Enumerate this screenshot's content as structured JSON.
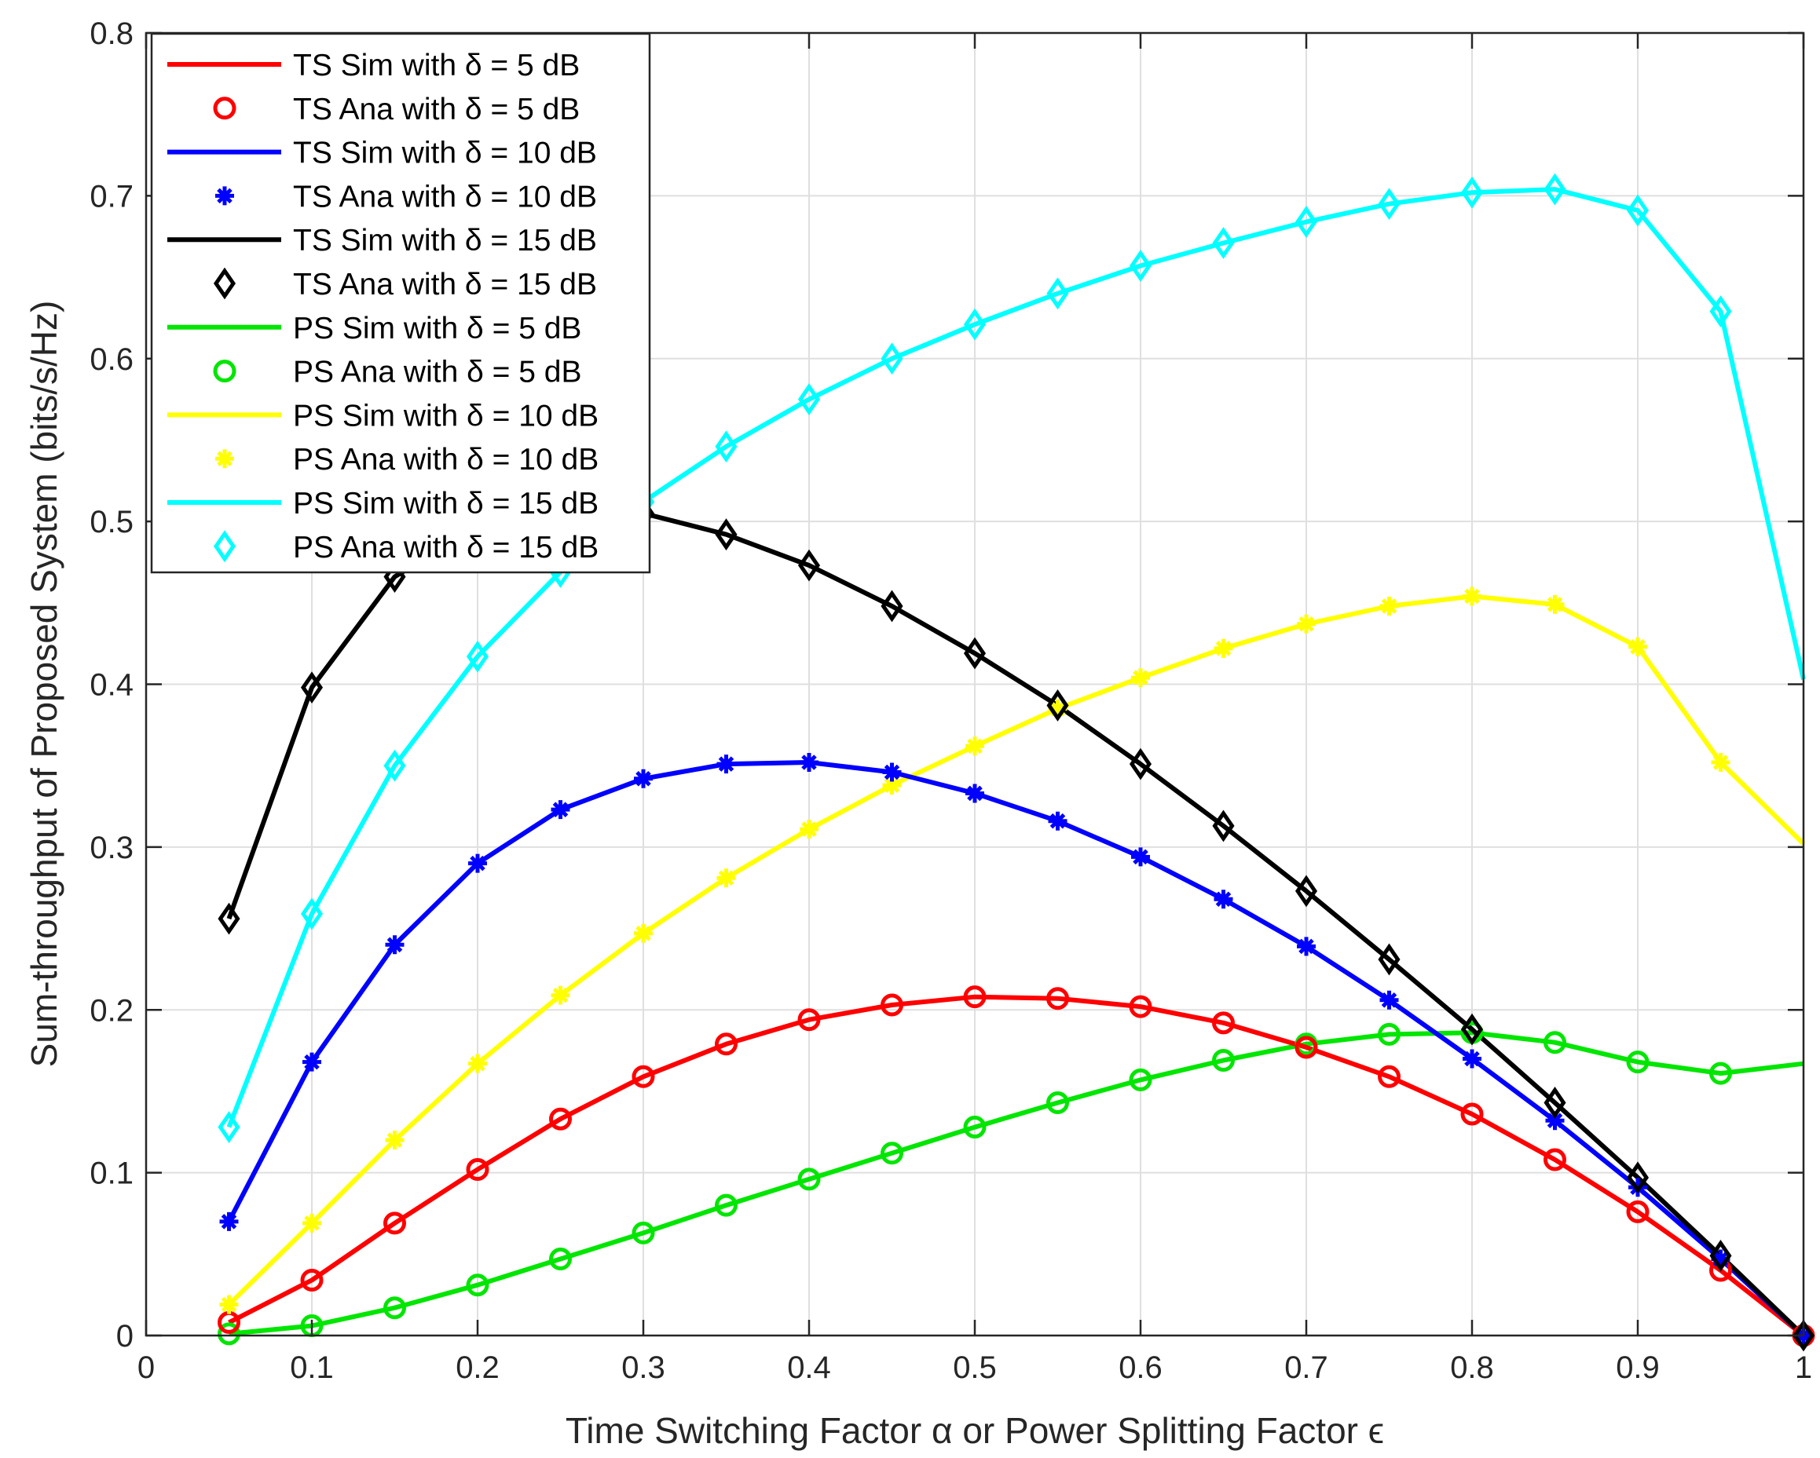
{
  "chart_data": {
    "type": "line",
    "title": "",
    "xlabel": "Time Switching Factor α  or Power Splitting Factor ϵ",
    "ylabel": "Sum-throughput of Proposed System (bits/s/Hz)",
    "xlim": [
      0,
      1
    ],
    "ylim": [
      0,
      0.8
    ],
    "x_ticks": [
      0,
      0.1,
      0.2,
      0.3,
      0.4,
      0.5,
      0.6,
      0.7,
      0.8,
      0.9,
      1
    ],
    "y_ticks": [
      0,
      0.1,
      0.2,
      0.3,
      0.4,
      0.5,
      0.6,
      0.7,
      0.8
    ],
    "x_tick_labels": [
      "0",
      "0.1",
      "0.2",
      "0.3",
      "0.4",
      "0.5",
      "0.6",
      "0.7",
      "0.8",
      "0.9",
      "1"
    ],
    "y_tick_labels": [
      "0",
      "0.1",
      "0.2",
      "0.3",
      "0.4",
      "0.5",
      "0.6",
      "0.7",
      "0.8"
    ],
    "grid": true,
    "legend_position": "top-left",
    "x": [
      0.05,
      0.1,
      0.15,
      0.2,
      0.25,
      0.3,
      0.35,
      0.4,
      0.45,
      0.5,
      0.55,
      0.6,
      0.65,
      0.7,
      0.75,
      0.8,
      0.85,
      0.9,
      0.95,
      1.0
    ],
    "series": [
      {
        "name": "TS Sim with δ = 5 dB",
        "kind": "line",
        "color": "#ff0000",
        "values": [
          0.008,
          0.034,
          0.069,
          0.102,
          0.133,
          0.159,
          0.179,
          0.194,
          0.203,
          0.208,
          0.207,
          0.202,
          0.192,
          0.177,
          0.159,
          0.136,
          0.108,
          0.076,
          0.04,
          0.0
        ]
      },
      {
        "name": "TS Ana with δ = 5 dB",
        "kind": "marker",
        "marker": "circle",
        "color": "#ff0000",
        "values": [
          0.008,
          0.034,
          0.069,
          0.102,
          0.133,
          0.159,
          0.179,
          0.194,
          0.203,
          0.208,
          0.207,
          0.202,
          0.192,
          0.177,
          0.159,
          0.136,
          0.108,
          0.076,
          0.04,
          0.0
        ]
      },
      {
        "name": "TS Sim with δ = 10 dB",
        "kind": "line",
        "color": "#0000ff",
        "values": [
          0.07,
          0.168,
          0.24,
          0.29,
          0.323,
          0.342,
          0.351,
          0.352,
          0.346,
          0.333,
          0.316,
          0.294,
          0.268,
          0.239,
          0.206,
          0.17,
          0.132,
          0.091,
          0.047,
          0.0
        ]
      },
      {
        "name": "TS Ana with δ = 10 dB",
        "kind": "marker",
        "marker": "star",
        "color": "#0000ff",
        "values": [
          0.07,
          0.168,
          0.24,
          0.29,
          0.323,
          0.342,
          0.351,
          0.352,
          0.346,
          0.333,
          0.316,
          0.294,
          0.268,
          0.239,
          0.206,
          0.17,
          0.132,
          0.091,
          0.047,
          0.0
        ]
      },
      {
        "name": "TS Sim with δ = 15 dB",
        "kind": "line",
        "color": "#000000",
        "values": [
          0.256,
          0.398,
          0.466,
          0.497,
          0.507,
          0.505,
          0.492,
          0.473,
          0.448,
          0.419,
          0.387,
          0.351,
          0.313,
          0.273,
          0.231,
          0.188,
          0.143,
          0.097,
          0.049,
          0.0
        ]
      },
      {
        "name": "TS Ana with δ = 15 dB",
        "kind": "marker",
        "marker": "diamond",
        "color": "#000000",
        "values": [
          0.256,
          0.398,
          0.466,
          0.497,
          0.507,
          0.505,
          0.492,
          0.473,
          0.448,
          0.419,
          0.387,
          0.351,
          0.313,
          0.273,
          0.231,
          0.188,
          0.143,
          0.097,
          0.049,
          0.0
        ]
      },
      {
        "name": "PS Sim with δ = 5 dB",
        "kind": "line",
        "color": "#00e600",
        "values": [
          0.001,
          0.006,
          0.017,
          0.031,
          0.047,
          0.063,
          0.08,
          0.096,
          0.112,
          0.128,
          0.143,
          0.157,
          0.169,
          0.179,
          0.185,
          0.186,
          0.18,
          0.168,
          0.161,
          0.167
        ]
      },
      {
        "name": "PS Ana with δ = 5 dB",
        "kind": "marker",
        "marker": "circle",
        "color": "#00e600",
        "values": [
          0.001,
          0.006,
          0.017,
          0.031,
          0.047,
          0.063,
          0.08,
          0.096,
          0.112,
          0.128,
          0.143,
          0.157,
          0.169,
          0.179,
          0.185,
          0.186,
          0.18,
          0.168,
          0.161,
          null
        ]
      },
      {
        "name": "PS Sim with δ = 10 dB",
        "kind": "line",
        "color": "#ffff00",
        "values": [
          0.019,
          0.069,
          0.12,
          0.167,
          0.209,
          0.247,
          0.281,
          0.311,
          0.338,
          0.362,
          0.385,
          0.404,
          0.422,
          0.437,
          0.448,
          0.454,
          0.449,
          0.423,
          0.352,
          0.302
        ]
      },
      {
        "name": "PS Ana with δ = 10 dB",
        "kind": "marker",
        "marker": "star",
        "color": "#ffff00",
        "values": [
          0.019,
          0.069,
          0.12,
          0.167,
          0.209,
          0.247,
          0.281,
          0.311,
          0.338,
          0.362,
          0.385,
          0.404,
          0.422,
          0.437,
          0.448,
          0.454,
          0.449,
          0.423,
          0.352,
          null
        ]
      },
      {
        "name": "PS Sim with δ = 15 dB",
        "kind": "line",
        "color": "#00ffff",
        "values": [
          0.128,
          0.259,
          0.35,
          0.417,
          0.469,
          0.512,
          0.546,
          0.575,
          0.6,
          0.621,
          0.64,
          0.657,
          0.671,
          0.684,
          0.695,
          0.702,
          0.704,
          0.691,
          0.629,
          0.403
        ]
      },
      {
        "name": "PS Ana with δ = 15 dB",
        "kind": "marker",
        "marker": "diamond",
        "color": "#00ffff",
        "values": [
          0.128,
          0.259,
          0.35,
          0.417,
          0.469,
          0.512,
          0.546,
          0.575,
          0.6,
          0.621,
          0.64,
          0.657,
          0.671,
          0.684,
          0.695,
          0.702,
          0.704,
          0.691,
          0.629,
          null
        ]
      }
    ]
  }
}
